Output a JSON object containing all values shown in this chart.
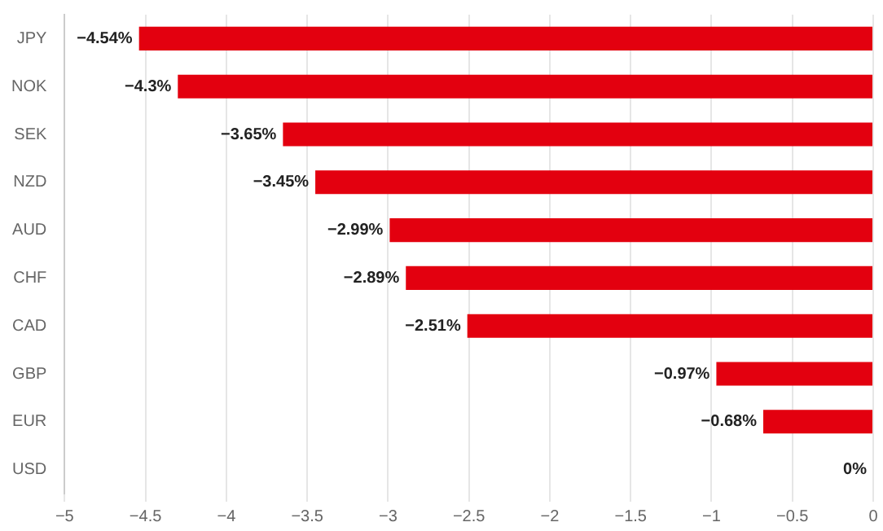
{
  "chart_data": {
    "type": "bar",
    "orientation": "horizontal",
    "categories": [
      "JPY",
      "NOK",
      "SEK",
      "NZD",
      "AUD",
      "CHF",
      "CAD",
      "GBP",
      "EUR",
      "USD"
    ],
    "values": [
      -4.54,
      -4.3,
      -3.65,
      -3.45,
      -2.99,
      -2.89,
      -2.51,
      -0.97,
      -0.68,
      0
    ],
    "value_labels": [
      "−4.54%",
      "−4.3%",
      "−3.65%",
      "−3.45%",
      "−2.99%",
      "−2.89%",
      "−2.51%",
      "−0.97%",
      "−0.68%",
      "0%"
    ],
    "color": "#e3000f",
    "xlim": [
      -5,
      0
    ],
    "xticks": [
      {
        "value": -5,
        "label": "−5"
      },
      {
        "value": -4.5,
        "label": "−4.5"
      },
      {
        "value": -4,
        "label": "−4"
      },
      {
        "value": -3.5,
        "label": "−3.5"
      },
      {
        "value": -3,
        "label": "−3"
      },
      {
        "value": -2.5,
        "label": "−2.5"
      },
      {
        "value": -2,
        "label": "−2"
      },
      {
        "value": -1.5,
        "label": "−1.5"
      },
      {
        "value": -1,
        "label": "−1"
      },
      {
        "value": -0.5,
        "label": "−0.5"
      },
      0
    ],
    "grid": "x",
    "legend": false
  }
}
